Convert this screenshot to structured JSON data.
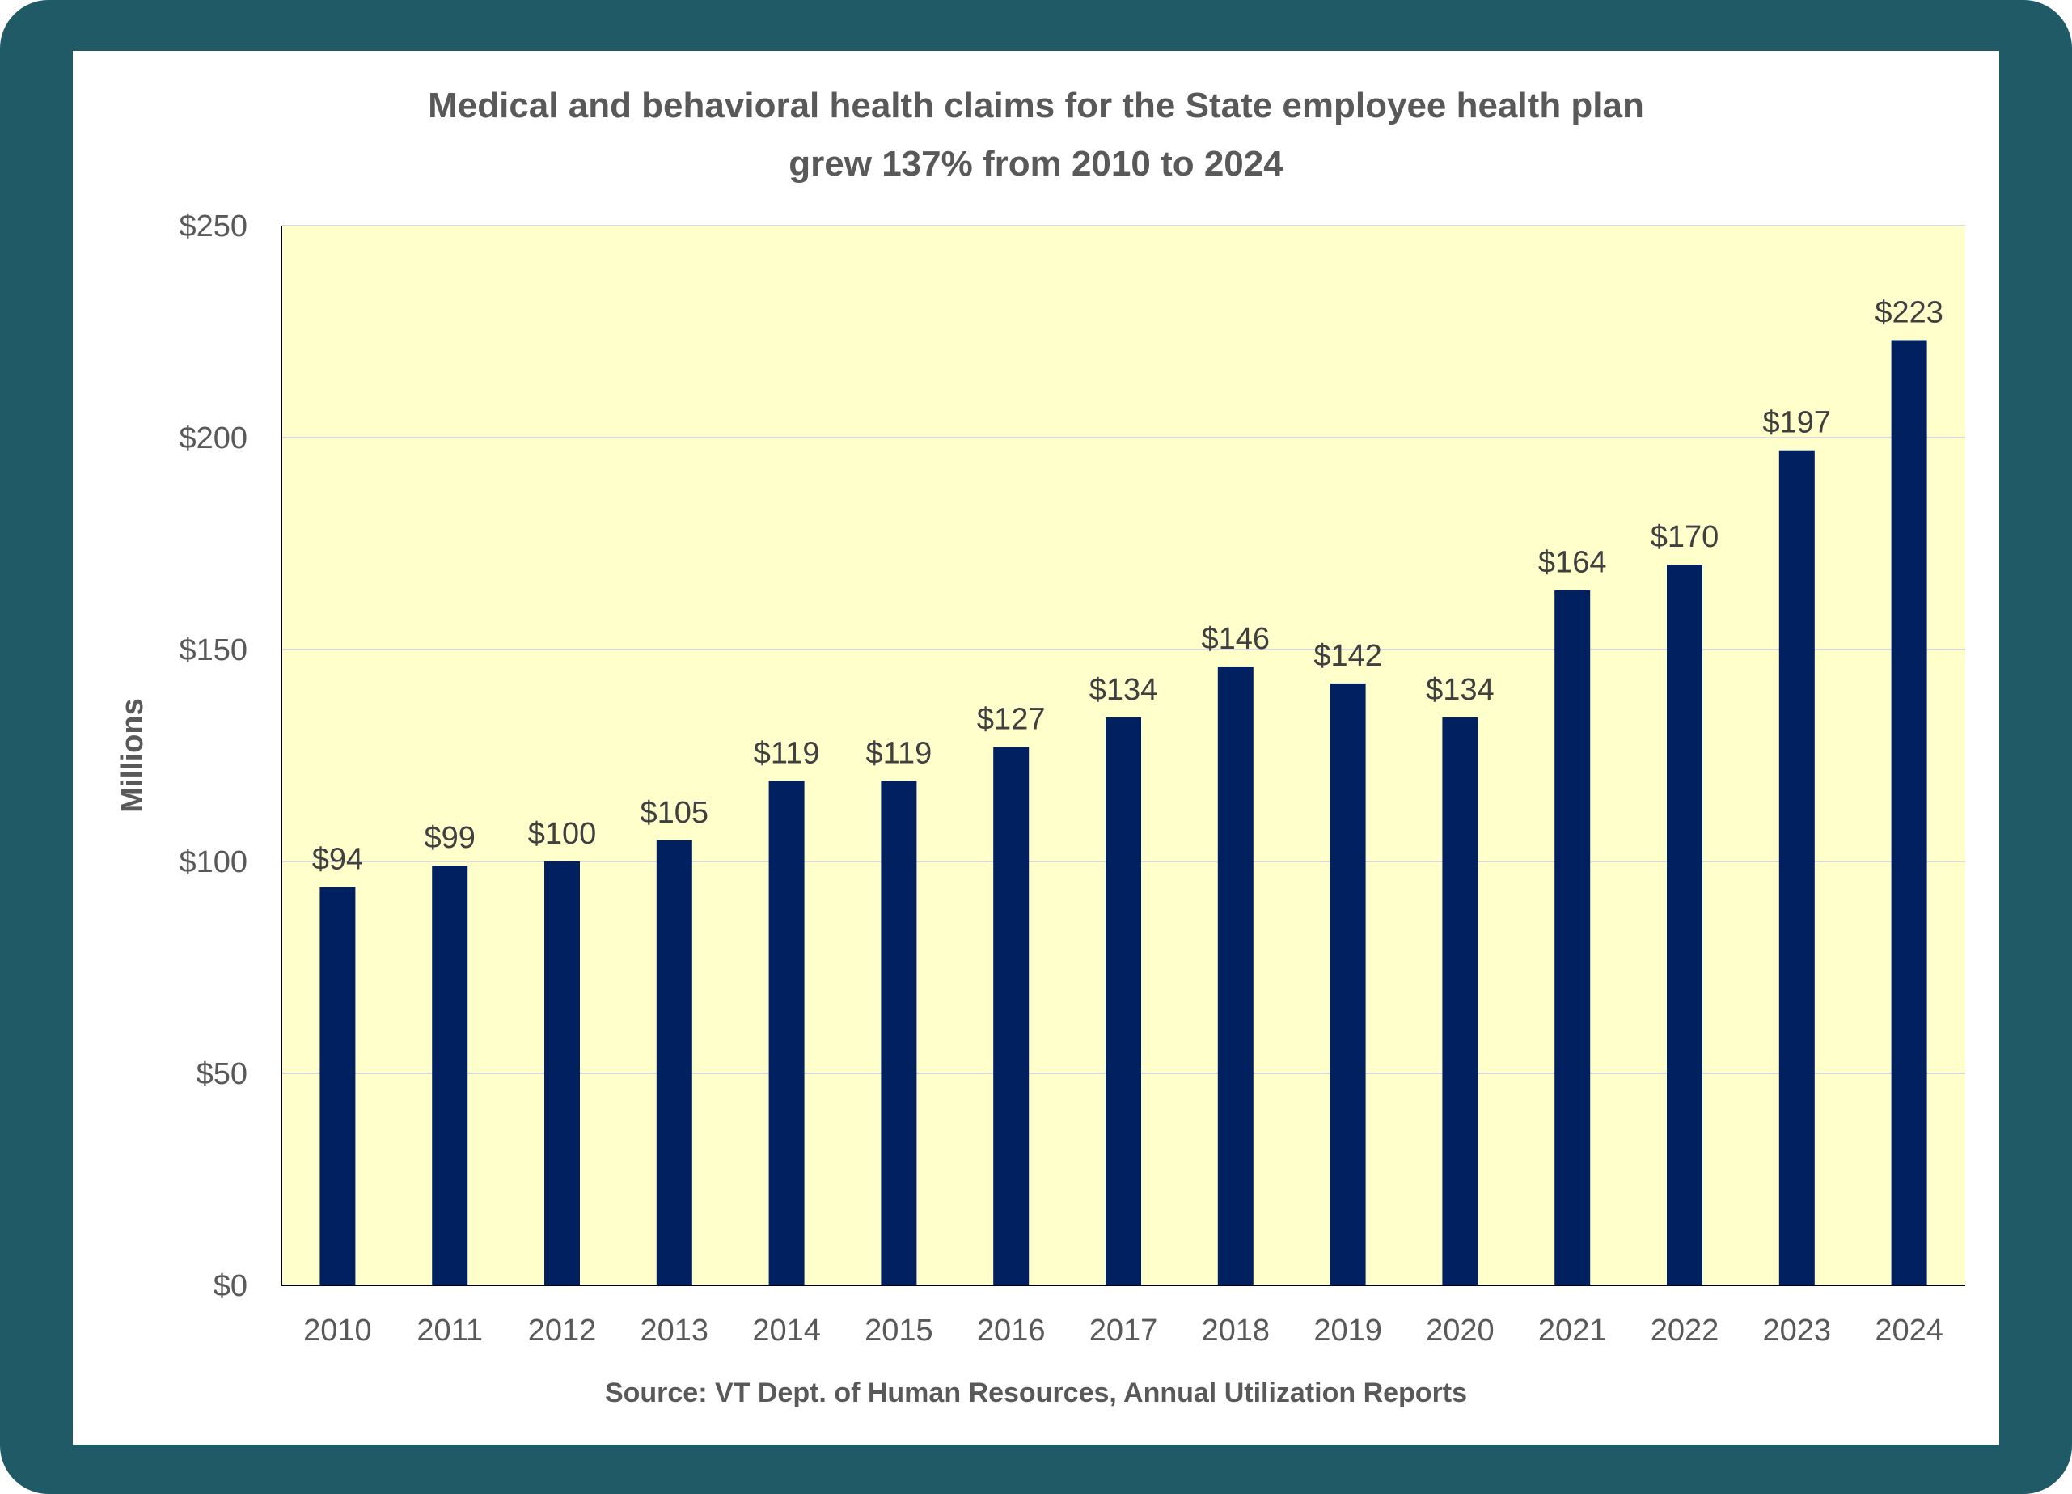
{
  "title_lines": [
    "Medical and behavioral health claims for the State employee health plan",
    "grew 137% from 2010 to 2024"
  ],
  "source": "Source: VT Dept. of Human Resources, Annual Utilization Reports",
  "colors": {
    "frame": "#1f5a66",
    "plot_background": "#ffffcc",
    "bar": "#002060",
    "gridline": "#d9d9d9"
  },
  "chart_data": {
    "type": "bar",
    "categories": [
      "2010",
      "2011",
      "2012",
      "2013",
      "2014",
      "2015",
      "2016",
      "2017",
      "2018",
      "2019",
      "2020",
      "2021",
      "2022",
      "2023",
      "2024"
    ],
    "values": [
      94,
      99,
      100,
      105,
      119,
      119,
      127,
      134,
      146,
      142,
      134,
      164,
      170,
      197,
      223
    ],
    "data_labels": [
      "$94",
      "$99",
      "$100",
      "$105",
      "$119",
      "$119",
      "$127",
      "$134",
      "$146",
      "$142",
      "$134",
      "$164",
      "$170",
      "$197",
      "$223"
    ],
    "title": "Medical and behavioral health claims for the State employee health plan grew 137% from 2010 to 2024",
    "xlabel": "",
    "ylabel": "Millions",
    "ylim": [
      0,
      250
    ],
    "yticks": [
      0,
      50,
      100,
      150,
      200,
      250
    ],
    "ytick_labels": [
      "$0",
      "$50",
      "$100",
      "$150",
      "$200",
      "$250"
    ],
    "grid": true,
    "legend": false
  }
}
